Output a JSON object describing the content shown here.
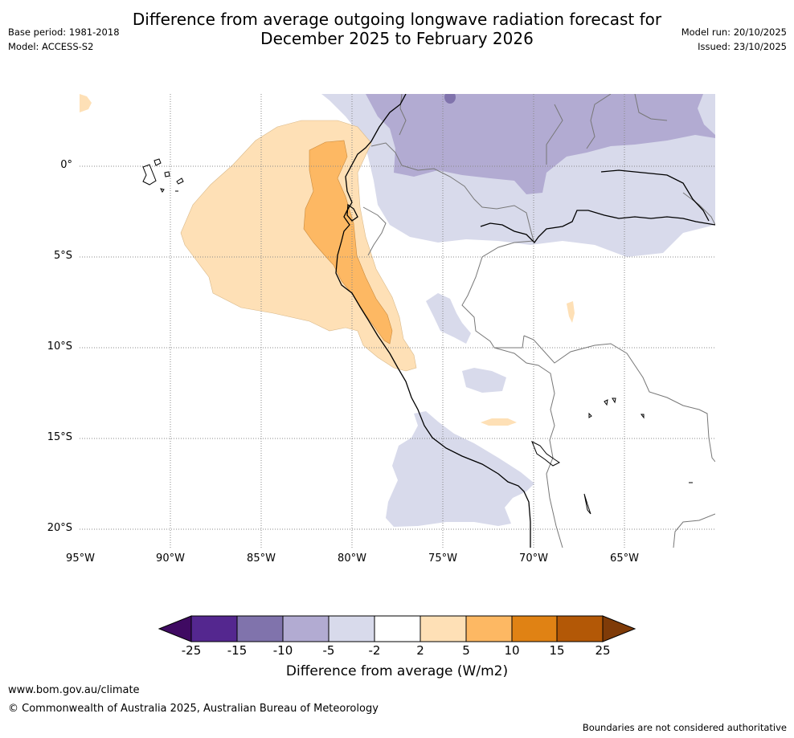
{
  "title": {
    "line1": "Difference from average outgoing longwave radiation forecast for",
    "line2": "December 2025 to February 2026"
  },
  "meta": {
    "base_period": "Base period: 1981-2018",
    "model": "Model: ACCESS-S2",
    "model_run": "Model run: 20/10/2025",
    "issued": "Issued: 23/10/2025"
  },
  "map": {
    "latitude_labels": [
      "0°",
      "5°S",
      "10°S",
      "15°S",
      "20°S"
    ],
    "longitude_labels": [
      "95°W",
      "90°W",
      "85°W",
      "80°W",
      "75°W",
      "70°W",
      "65°W"
    ],
    "extent": {
      "lon_min": -95,
      "lon_max": -60,
      "lat_min": -21,
      "lat_max": 4
    }
  },
  "legend": {
    "title": "Difference from average (W/m2)",
    "ticks": [
      "-25",
      "-15",
      "-10",
      "-5",
      "-2",
      "2",
      "5",
      "10",
      "15",
      "25"
    ],
    "colors": [
      "#3f0a62",
      "#54278f",
      "#8073ac",
      "#b2abd2",
      "#d8daeb",
      "#ffffff",
      "#fee0b6",
      "#fdb863",
      "#e08214",
      "#b35806",
      "#7f3b08"
    ]
  },
  "footer": {
    "url": "www.bom.gov.au/climate",
    "copyright": "© Commonwealth of Australia 2025, Australian Bureau of Meteorology",
    "note": "Boundaries are not considered authoritative"
  }
}
